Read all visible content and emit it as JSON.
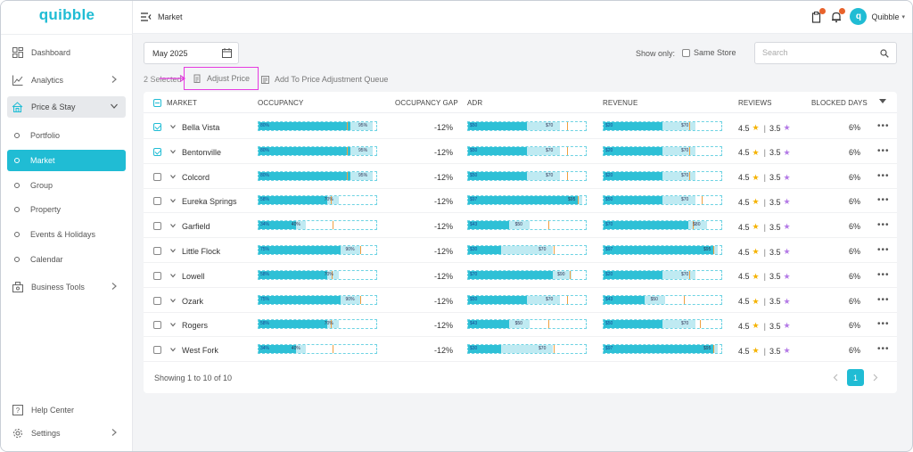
{
  "app": {
    "logo": "quibble"
  },
  "topbar": {
    "title": "Market",
    "user_name": "Quibble",
    "avatar_initial": "q"
  },
  "sidebar": {
    "dashboard": "Dashboard",
    "analytics": "Analytics",
    "price_stay": "Price & Stay",
    "sub": [
      "Portfolio",
      "Market",
      "Group",
      "Property",
      "Events & Holidays",
      "Calendar"
    ],
    "business_tools": "Business Tools",
    "help_center": "Help Center",
    "settings": "Settings"
  },
  "toolbar": {
    "date": "May 2025",
    "show_only": "Show only:",
    "same_store": "Same Store",
    "search_placeholder": "Search",
    "selected": "2 Selected",
    "adjust_price": "Adjust Price",
    "add_queue": "Add To Price Adjustment Queue"
  },
  "table": {
    "headers": {
      "market": "MARKET",
      "occupancy": "OCCUPANCY",
      "occupancy_gap": "OCCUPANCY GAP",
      "adr": "ADR",
      "revenue": "REVENUE",
      "reviews": "REVIEWS",
      "blocked_days": "BLOCKED DAYS"
    },
    "rows": [
      {
        "name": "Bella Vista",
        "checked": true,
        "gap": "-12%",
        "r1": "4.5",
        "r2": "3.5",
        "blocked": "6%",
        "occ": {
          "l1": "80%",
          "l2": "95%",
          "fill": 0.78,
          "bg": 0.97,
          "mark": 0.75
        },
        "adr": {
          "l1": "$50",
          "l2": "$70",
          "fill": 0.5,
          "bg": 0.78,
          "mark": 0.84
        },
        "rev": {
          "l1": "$20",
          "l2": "$70",
          "fill": 0.5,
          "bg": 0.78,
          "mark": 0.73
        }
      },
      {
        "name": "Bentonville",
        "checked": true,
        "gap": "-12%",
        "r1": "4.5",
        "r2": "3.5",
        "blocked": "6%",
        "occ": {
          "l1": "80%",
          "l2": "95%",
          "fill": 0.78,
          "bg": 0.97,
          "mark": 0.75
        },
        "adr": {
          "l1": "$50",
          "l2": "$70",
          "fill": 0.5,
          "bg": 0.78,
          "mark": 0.84
        },
        "rev": {
          "l1": "$20",
          "l2": "$70",
          "fill": 0.5,
          "bg": 0.78,
          "mark": 0.73
        }
      },
      {
        "name": "Colcord",
        "checked": false,
        "gap": "-12%",
        "r1": "4.5",
        "r2": "3.5",
        "blocked": "6%",
        "occ": {
          "l1": "80%",
          "l2": "95%",
          "fill": 0.78,
          "bg": 0.97,
          "mark": 0.75
        },
        "adr": {
          "l1": "$50",
          "l2": "$70",
          "fill": 0.5,
          "bg": 0.78,
          "mark": 0.84
        },
        "rev": {
          "l1": "$20",
          "l2": "$70",
          "fill": 0.5,
          "bg": 0.78,
          "mark": 0.73
        }
      },
      {
        "name": "Eureka Springs",
        "checked": false,
        "gap": "-12%",
        "r1": "4.5",
        "r2": "3.5",
        "blocked": "6%",
        "occ": {
          "l1": "58%",
          "l2": "70%",
          "fill": 0.58,
          "bg": 0.68,
          "mark": 0.61
        },
        "adr": {
          "l1": "$97",
          "l2": "$95",
          "fill": 0.93,
          "bg": 0.97,
          "mark": 0.93
        },
        "rev": {
          "l1": "$50",
          "l2": "$70",
          "fill": 0.5,
          "bg": 0.78,
          "mark": 0.83
        }
      },
      {
        "name": "Garfield",
        "checked": false,
        "gap": "-12%",
        "r1": "4.5",
        "r2": "3.5",
        "blocked": "6%",
        "occ": {
          "l1": "34%",
          "l2": "40%",
          "fill": 0.32,
          "bg": 0.4,
          "mark": 0.63
        },
        "adr": {
          "l1": "$43",
          "l2": "$50",
          "fill": 0.35,
          "bg": 0.52,
          "mark": 0.68
        },
        "rev": {
          "l1": "$70",
          "l2": "$80",
          "fill": 0.72,
          "bg": 0.88,
          "mark": 0.76
        }
      },
      {
        "name": "Little Flock",
        "checked": false,
        "gap": "-12%",
        "r1": "4.5",
        "r2": "3.5",
        "blocked": "6%",
        "occ": {
          "l1": "75%",
          "l2": "90%",
          "fill": 0.7,
          "bg": 0.86,
          "mark": 0.86
        },
        "adr": {
          "l1": "$30",
          "l2": "$70",
          "fill": 0.28,
          "bg": 0.72,
          "mark": 0.73
        },
        "rev": {
          "l1": "$97",
          "l2": "$95",
          "fill": 0.93,
          "bg": 0.97,
          "mark": 0.93
        }
      },
      {
        "name": "Lowell",
        "checked": false,
        "gap": "-12%",
        "r1": "4.5",
        "r2": "3.5",
        "blocked": "6%",
        "occ": {
          "l1": "58%",
          "l2": "70%",
          "fill": 0.58,
          "bg": 0.68,
          "mark": 0.62
        },
        "adr": {
          "l1": "$70",
          "l2": "$90",
          "fill": 0.72,
          "bg": 0.88,
          "mark": 0.86
        },
        "rev": {
          "l1": "$20",
          "l2": "$70",
          "fill": 0.5,
          "bg": 0.78,
          "mark": 0.73
        }
      },
      {
        "name": "Ozark",
        "checked": false,
        "gap": "-12%",
        "r1": "4.5",
        "r2": "3.5",
        "blocked": "6%",
        "occ": {
          "l1": "75%",
          "l2": "90%",
          "fill": 0.7,
          "bg": 0.86,
          "mark": 0.86
        },
        "adr": {
          "l1": "$50",
          "l2": "$70",
          "fill": 0.5,
          "bg": 0.78,
          "mark": 0.84
        },
        "rev": {
          "l1": "$43",
          "l2": "$50",
          "fill": 0.35,
          "bg": 0.52,
          "mark": 0.68
        }
      },
      {
        "name": "Rogers",
        "checked": false,
        "gap": "-12%",
        "r1": "4.5",
        "r2": "3.5",
        "blocked": "6%",
        "occ": {
          "l1": "58%",
          "l2": "70%",
          "fill": 0.58,
          "bg": 0.68,
          "mark": 0.61
        },
        "adr": {
          "l1": "$43",
          "l2": "$50",
          "fill": 0.35,
          "bg": 0.52,
          "mark": 0.68
        },
        "rev": {
          "l1": "$50",
          "l2": "$70",
          "fill": 0.5,
          "bg": 0.78,
          "mark": 0.82
        }
      },
      {
        "name": "West Fork",
        "checked": false,
        "gap": "-12%",
        "r1": "4.5",
        "r2": "3.5",
        "blocked": "6%",
        "occ": {
          "l1": "34%",
          "l2": "40%",
          "fill": 0.32,
          "bg": 0.4,
          "mark": 0.63
        },
        "adr": {
          "l1": "$30",
          "l2": "$70",
          "fill": 0.28,
          "bg": 0.72,
          "mark": 0.73
        },
        "rev": {
          "l1": "$97",
          "l2": "$95",
          "fill": 0.93,
          "bg": 0.97,
          "mark": 0.93
        }
      }
    ],
    "footer": "Showing 1 to 10 of 10",
    "page": "1"
  },
  "colors": {
    "accent": "#20bcd4",
    "star_gold": "#f5b301",
    "star_purple": "#b47be6",
    "highlight": "#e53be0"
  },
  "icons": [
    "dashboard-icon",
    "analytics-icon",
    "price-stay-icon",
    "business-tools-icon",
    "help-icon",
    "settings-icon",
    "calendar-icon",
    "search-icon",
    "bell-icon",
    "clipboard-icon"
  ]
}
